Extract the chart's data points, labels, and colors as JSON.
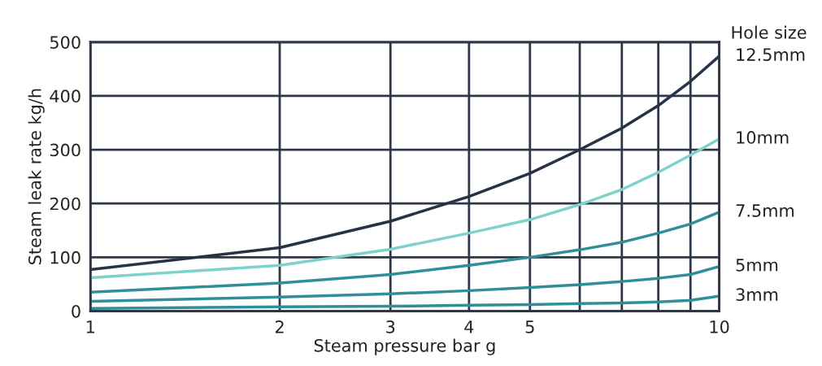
{
  "chart_data": {
    "type": "line",
    "xlabel": "Steam pressure bar g",
    "ylabel": "Steam leak rate kg/h",
    "legend_title": "Hole size",
    "x": [
      1,
      2,
      3,
      4,
      5,
      6,
      7,
      8,
      9,
      10
    ],
    "log": "x",
    "xlim": [
      1,
      10
    ],
    "xticks": [
      1,
      2,
      3,
      4,
      5,
      {
        "value": 6,
        "label": null
      },
      {
        "value": 7,
        "label": null
      },
      {
        "value": 8,
        "label": null
      },
      {
        "value": 9,
        "label": null
      },
      10
    ],
    "ylim": [
      0,
      500
    ],
    "yticks": [
      0,
      100,
      200,
      300,
      400,
      500
    ],
    "grid": true,
    "legend": false,
    "marker": "none",
    "line_style": "solid",
    "series": [
      {
        "name": "12.5mm",
        "color": "#263345",
        "values": [
          77,
          118,
          167,
          213,
          256,
          300,
          340,
          382,
          427,
          474
        ]
      },
      {
        "name": "10mm",
        "color": "#7fd1cc",
        "values": [
          62,
          85,
          115,
          145,
          170,
          198,
          226,
          258,
          290,
          320
        ]
      },
      {
        "name": "7.5mm",
        "color": "#2f8f98",
        "values": [
          35,
          52,
          68,
          85,
          100,
          114,
          128,
          145,
          162,
          184
        ]
      },
      {
        "name": "5mm",
        "color": "#2f8f98",
        "values": [
          18,
          26,
          32,
          38,
          44,
          49,
          55,
          61,
          68,
          83
        ]
      },
      {
        "name": "3mm",
        "color": "#2f8f98",
        "values": [
          5,
          8,
          9,
          11,
          12,
          14,
          15,
          17,
          20,
          28
        ]
      }
    ]
  }
}
